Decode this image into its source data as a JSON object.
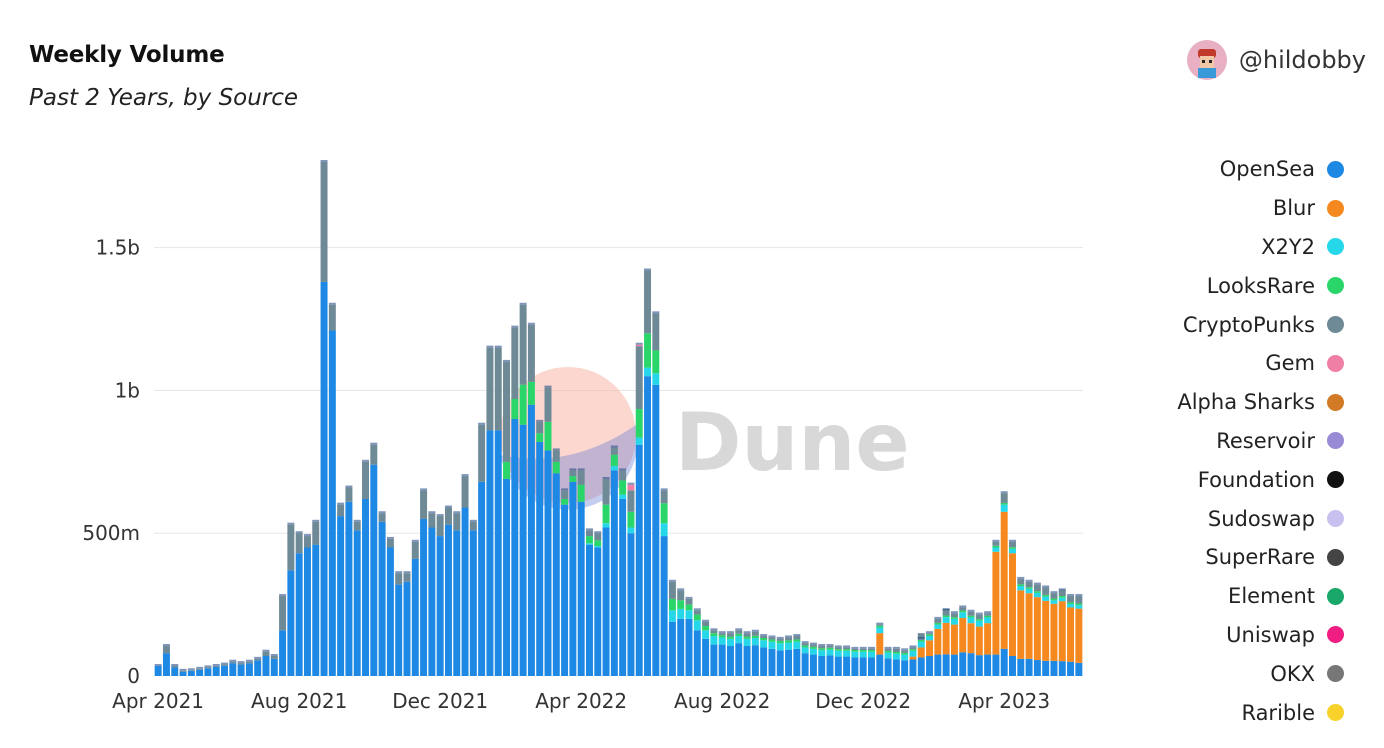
{
  "header": {
    "title": "Weekly Volume",
    "subtitle": "Past 2 Years, by Source",
    "author": "@hildobby"
  },
  "watermark": "Dune",
  "colors": {
    "OpenSea": "#1e88e5",
    "Blur": "#f5891f",
    "X2Y2": "#26d7ea",
    "LooksRare": "#2ad66a",
    "CryptoPunks": "#6e8a96",
    "Gem": "#f07fa6",
    "Alpha Sharks": "#d27a25",
    "Reservoir": "#9a8ad6",
    "Foundation": "#111111",
    "Sudoswap": "#c8c0ee",
    "SuperRare": "#444444",
    "Element": "#19a86a",
    "Uniswap": "#f01e82",
    "OKX": "#777777",
    "Rarible": "#f8d22a"
  },
  "chart_data": {
    "type": "bar",
    "stacked": true,
    "title": "Weekly Volume",
    "subtitle": "Past 2 Years, by Source",
    "xlabel": "",
    "ylabel": "",
    "ylim": [
      0,
      1800000000
    ],
    "yticks": [
      {
        "value": 0,
        "label": "0"
      },
      {
        "value": 500000000,
        "label": "500m"
      },
      {
        "value": 1000000000,
        "label": "1b"
      },
      {
        "value": 1500000000,
        "label": "1.5b"
      }
    ],
    "xticks": [
      {
        "index": 0,
        "label": "Apr 2021"
      },
      {
        "index": 17,
        "label": "Aug 2021"
      },
      {
        "index": 34,
        "label": "Dec 2021"
      },
      {
        "index": 51,
        "label": "Apr 2022"
      },
      {
        "index": 68,
        "label": "Aug 2022"
      },
      {
        "index": 85,
        "label": "Dec 2022"
      },
      {
        "index": 102,
        "label": "Apr 2023"
      }
    ],
    "legend": [
      "OpenSea",
      "Blur",
      "X2Y2",
      "LooksRare",
      "CryptoPunks",
      "Gem",
      "Alpha Sharks",
      "Reservoir",
      "Foundation",
      "Sudoswap",
      "SuperRare",
      "Element",
      "Uniswap",
      "OKX",
      "Rarible"
    ],
    "legend_position": "right",
    "grid": true,
    "total_millions": [
      35,
      105,
      35,
      18,
      20,
      25,
      30,
      35,
      40,
      50,
      45,
      50,
      60,
      85,
      70,
      280,
      530,
      500,
      490,
      540,
      1800,
      1300,
      600,
      660,
      540,
      750,
      810,
      570,
      480,
      360,
      360,
      470,
      650,
      570,
      560,
      590,
      570,
      700,
      540,
      880,
      1150,
      1150,
      1100,
      1220,
      1300,
      1230,
      890,
      1010,
      790,
      650,
      720,
      720,
      510,
      500,
      690,
      800,
      720,
      670,
      1160,
      1420,
      1270,
      650,
      330,
      300,
      270,
      230,
      190,
      160,
      150,
      150,
      160,
      150,
      155,
      140,
      135,
      130,
      135,
      140,
      115,
      110,
      105,
      105,
      100,
      100,
      95,
      95,
      95,
      180,
      95,
      95,
      90,
      100,
      130,
      150,
      200,
      230,
      220,
      240,
      225,
      215,
      220,
      470,
      640,
      470,
      340,
      330,
      320,
      310,
      290,
      300,
      280,
      280
    ],
    "series": [
      {
        "name": "OpenSea",
        "values_millions": [
          35,
          80,
          30,
          15,
          18,
          22,
          27,
          32,
          36,
          45,
          40,
          45,
          55,
          70,
          60,
          160,
          370,
          430,
          450,
          460,
          1380,
          1210,
          560,
          610,
          510,
          620,
          740,
          540,
          450,
          320,
          330,
          410,
          550,
          520,
          490,
          530,
          510,
          590,
          510,
          680,
          860,
          860,
          690,
          900,
          880,
          950,
          820,
          790,
          710,
          600,
          680,
          610,
          460,
          450,
          520,
          720,
          620,
          500,
          810,
          1050,
          1020,
          490,
          190,
          200,
          200,
          160,
          130,
          110,
          110,
          105,
          115,
          105,
          108,
          100,
          95,
          90,
          92,
          95,
          80,
          75,
          70,
          72,
          68,
          68,
          65,
          65,
          65,
          75,
          62,
          58,
          55,
          58,
          65,
          70,
          75,
          76,
          75,
          83,
          80,
          73,
          75,
          75,
          95,
          70,
          60,
          60,
          56,
          53,
          53,
          52,
          50,
          46
        ]
      },
      {
        "name": "Blur",
        "values_millions": [
          0,
          0,
          0,
          0,
          0,
          0,
          0,
          0,
          0,
          0,
          0,
          0,
          0,
          0,
          0,
          0,
          0,
          0,
          0,
          0,
          0,
          0,
          0,
          0,
          0,
          0,
          0,
          0,
          0,
          0,
          0,
          0,
          0,
          0,
          0,
          0,
          0,
          0,
          0,
          0,
          0,
          0,
          0,
          0,
          0,
          0,
          0,
          0,
          0,
          0,
          0,
          0,
          0,
          0,
          0,
          0,
          0,
          0,
          0,
          0,
          0,
          0,
          0,
          0,
          0,
          0,
          0,
          0,
          0,
          0,
          0,
          0,
          0,
          0,
          0,
          0,
          0,
          0,
          0,
          0,
          0,
          0,
          0,
          0,
          0,
          0,
          0,
          75,
          0,
          0,
          0,
          10,
          35,
          55,
          90,
          110,
          105,
          120,
          105,
          100,
          110,
          360,
          480,
          360,
          240,
          230,
          220,
          210,
          200,
          210,
          190,
          190
        ]
      },
      {
        "name": "X2Y2",
        "values_millions": [
          0,
          0,
          0,
          0,
          0,
          0,
          0,
          0,
          0,
          0,
          0,
          0,
          0,
          0,
          0,
          0,
          0,
          0,
          0,
          0,
          0,
          0,
          0,
          0,
          0,
          0,
          0,
          0,
          0,
          0,
          0,
          0,
          0,
          0,
          0,
          0,
          0,
          0,
          0,
          0,
          0,
          0,
          0,
          0,
          0,
          0,
          0,
          0,
          0,
          0,
          0,
          0,
          5,
          5,
          15,
          15,
          15,
          20,
          25,
          30,
          40,
          45,
          40,
          35,
          30,
          35,
          30,
          30,
          25,
          25,
          25,
          25,
          25,
          25,
          25,
          25,
          25,
          25,
          20,
          20,
          20,
          20,
          20,
          20,
          20,
          20,
          20,
          20,
          20,
          20,
          20,
          20,
          20,
          15,
          15,
          20,
          20,
          20,
          20,
          20,
          20,
          15,
          25,
          15,
          15,
          15,
          15,
          15,
          12,
          12,
          12,
          12
        ]
      },
      {
        "name": "LooksRare",
        "values_millions": [
          0,
          0,
          0,
          0,
          0,
          0,
          0,
          0,
          0,
          0,
          0,
          0,
          0,
          0,
          0,
          0,
          0,
          0,
          0,
          0,
          0,
          0,
          0,
          0,
          0,
          0,
          0,
          0,
          0,
          0,
          0,
          0,
          0,
          0,
          0,
          0,
          0,
          0,
          0,
          0,
          0,
          0,
          60,
          70,
          140,
          80,
          30,
          100,
          40,
          20,
          20,
          60,
          25,
          20,
          65,
          40,
          50,
          55,
          100,
          120,
          80,
          70,
          40,
          30,
          20,
          20,
          15,
          10,
          8,
          8,
          8,
          8,
          8,
          8,
          8,
          8,
          8,
          8,
          7,
          7,
          7,
          7,
          6,
          6,
          6,
          6,
          6,
          6,
          6,
          6,
          6,
          6,
          6,
          6,
          6,
          6,
          6,
          6,
          6,
          6,
          6,
          6,
          6,
          6,
          6,
          6,
          6,
          6,
          6,
          6,
          6,
          6
        ]
      },
      {
        "name": "CryptoPunks",
        "values_millions": [
          0,
          25,
          5,
          3,
          2,
          3,
          3,
          3,
          4,
          5,
          5,
          5,
          5,
          15,
          10,
          120,
          160,
          70,
          40,
          80,
          420,
          90,
          40,
          50,
          30,
          130,
          70,
          30,
          30,
          40,
          30,
          60,
          100,
          50,
          70,
          60,
          60,
          110,
          30,
          200,
          290,
          290,
          350,
          250,
          280,
          200,
          40,
          120,
          40,
          30,
          20,
          50,
          20,
          25,
          90,
          25,
          35,
          75,
          220,
          220,
          130,
          45,
          60,
          35,
          20,
          15,
          15,
          10,
          7,
          12,
          12,
          12,
          14,
          7,
          7,
          7,
          10,
          12,
          8,
          8,
          8,
          6,
          6,
          6,
          4,
          4,
          4,
          4,
          7,
          11,
          9,
          6,
          24,
          4,
          14,
          24,
          14,
          11,
          14,
          16,
          9,
          14,
          34,
          19,
          19,
          19,
          23,
          26,
          19,
          22,
          22,
          26
        ]
      }
    ]
  }
}
